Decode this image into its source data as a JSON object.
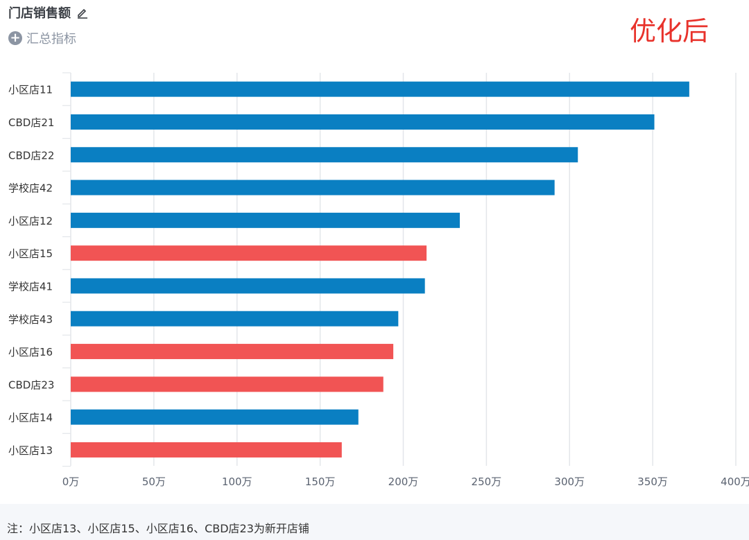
{
  "header": {
    "title": "门店销售额",
    "summary_label": "汇总指标",
    "watermark": "优化后"
  },
  "footnote": "注：小区店13、小区店15、小区店16、CBD店23为新开店铺",
  "colors": {
    "existing": "#0a7fc2",
    "new": "#f15454",
    "grid": "#e3e6ea",
    "axis_text": "#5a6270"
  },
  "chart_data": {
    "type": "bar",
    "orientation": "horizontal",
    "categories": [
      "小区店11",
      "CBD店21",
      "CBD店22",
      "学校店42",
      "小区店12",
      "小区店15",
      "学校店41",
      "学校店43",
      "小区店16",
      "CBD店23",
      "小区店14",
      "小区店13"
    ],
    "values": [
      372,
      351,
      305,
      291,
      234,
      214,
      213,
      197,
      194,
      188,
      173,
      163
    ],
    "is_new": [
      false,
      false,
      false,
      false,
      false,
      true,
      false,
      false,
      true,
      true,
      false,
      true
    ],
    "xlim": [
      0,
      400
    ],
    "xticks": [
      {
        "value": 0,
        "label": "0万"
      },
      {
        "value": 50,
        "label": "50万"
      },
      {
        "value": 100,
        "label": "100万"
      },
      {
        "value": 150,
        "label": "150万"
      },
      {
        "value": 200,
        "label": "200万"
      },
      {
        "value": 250,
        "label": "250万"
      },
      {
        "value": 300,
        "label": "300万"
      },
      {
        "value": 350,
        "label": "350万"
      },
      {
        "value": 400,
        "label": "400万"
      }
    ],
    "grid": true
  }
}
